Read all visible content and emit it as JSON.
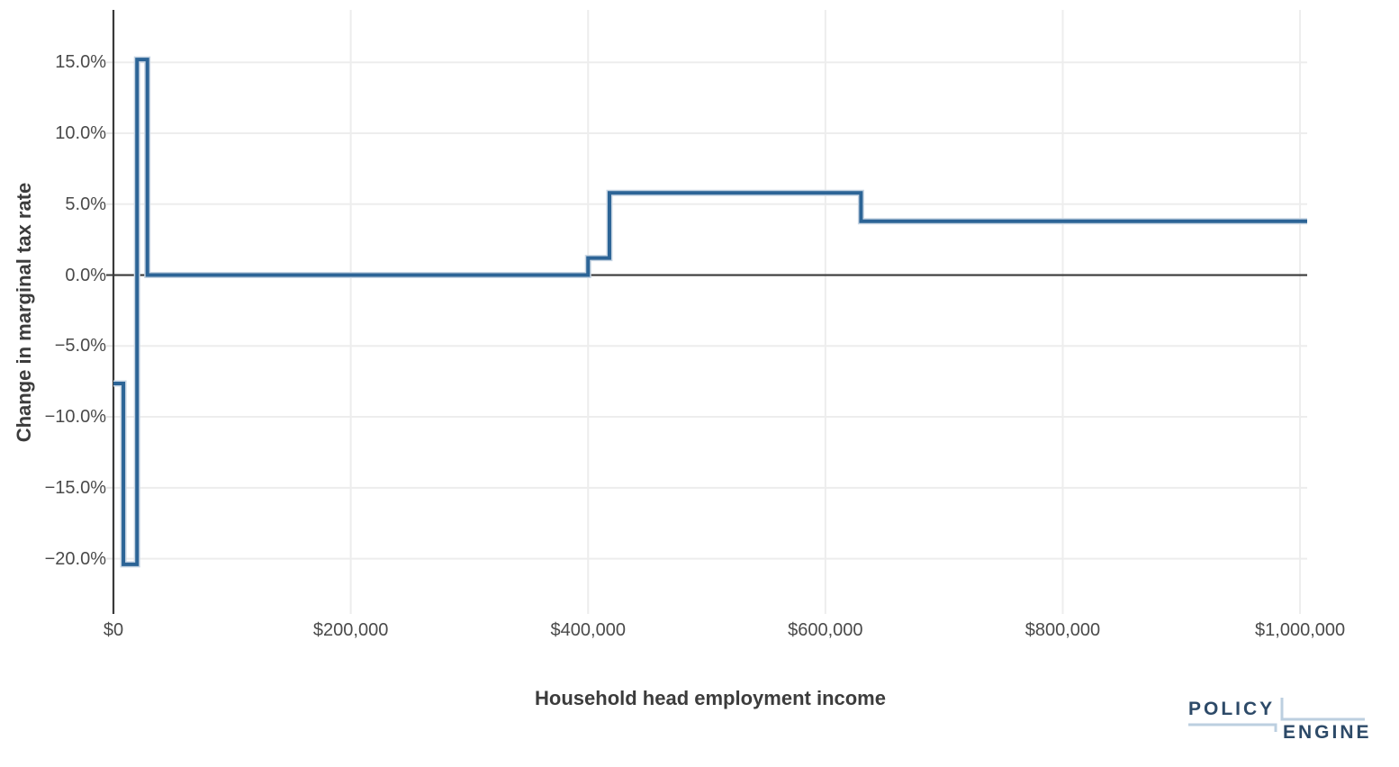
{
  "page": {
    "background": "#ffffff"
  },
  "chart_data": {
    "type": "line",
    "line_shape": "hv-step",
    "title": "",
    "xlabel": "Household head employment income",
    "ylabel": "Change in marginal tax rate",
    "grid": true,
    "legend": "none",
    "line_color": "#2C6496",
    "line_halo_color": "#c7d5e3",
    "axis_color": "#3a3a3a",
    "gridline_color": "#ededed",
    "tick_text_color": "#4a4a4a",
    "x_axis": {
      "range": [
        0,
        1006000
      ],
      "ticks": [
        {
          "value": 0,
          "label": "$0"
        },
        {
          "value": 200000,
          "label": "$200,000"
        },
        {
          "value": 400000,
          "label": "$400,000"
        },
        {
          "value": 600000,
          "label": "$600,000"
        },
        {
          "value": 800000,
          "label": "$800,000"
        },
        {
          "value": 1000000,
          "label": "$1,000,000"
        }
      ]
    },
    "y_axis": {
      "range": [
        -23.9,
        18.7
      ],
      "ticks": [
        {
          "value": 15,
          "label": "15.0%"
        },
        {
          "value": 10,
          "label": "10.0%"
        },
        {
          "value": 5,
          "label": "5.0%"
        },
        {
          "value": 0,
          "label": "0.0%"
        },
        {
          "value": -5,
          "label": "−5.0%"
        },
        {
          "value": -10,
          "label": "−10.0%"
        },
        {
          "value": -15,
          "label": "−15.0%"
        },
        {
          "value": -20,
          "label": "−20.0%"
        }
      ]
    },
    "series": [
      {
        "name": "Change in marginal tax rate",
        "segments": [
          {
            "x_start": 0,
            "x_end": 8400,
            "value": -7.65
          },
          {
            "x_start": 8400,
            "x_end": 19900,
            "value": -20.4
          },
          {
            "x_start": 19900,
            "x_end": 28600,
            "value": 15.2
          },
          {
            "x_start": 28600,
            "x_end": 400000,
            "value": 0.0
          },
          {
            "x_start": 400000,
            "x_end": 418000,
            "value": 1.2
          },
          {
            "x_start": 418000,
            "x_end": 630000,
            "value": 5.8
          },
          {
            "x_start": 630000,
            "x_end": 1000000,
            "value": 3.8
          }
        ]
      }
    ]
  },
  "branding": {
    "logo_top": "POLICY",
    "logo_bottom": "ENGINE",
    "logo_text_color": "#2d4a68",
    "logo_accent_color": "#bccfe0"
  }
}
